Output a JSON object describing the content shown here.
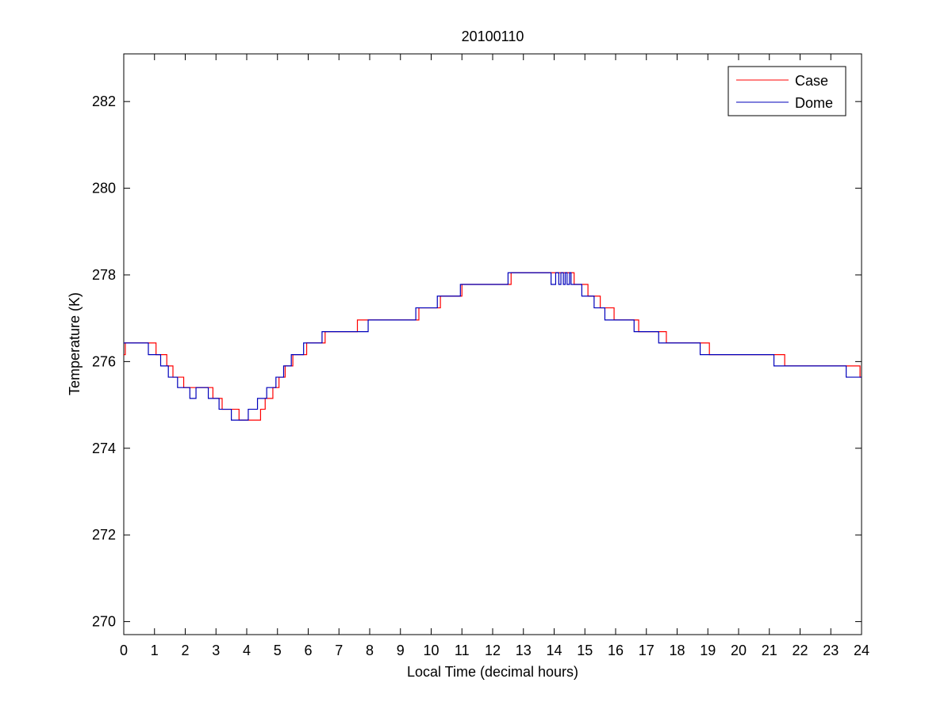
{
  "chart_data": {
    "type": "line",
    "title": "20100110",
    "xlabel": "Local Time (decimal hours)",
    "ylabel": "Temperature (K)",
    "xlim": [
      0,
      24
    ],
    "ylim": [
      269.7,
      283.1
    ],
    "xticks": [
      0,
      1,
      2,
      3,
      4,
      5,
      6,
      7,
      8,
      9,
      10,
      11,
      12,
      13,
      14,
      15,
      16,
      17,
      18,
      19,
      20,
      21,
      22,
      23,
      24
    ],
    "yticks": [
      270,
      272,
      274,
      276,
      278,
      280,
      282
    ],
    "grid": false,
    "legend_position": "top-right",
    "series": [
      {
        "name": "Case",
        "color": "#ff0000",
        "step_points": [
          [
            0.0,
            276.16
          ],
          [
            0.05,
            276.43
          ],
          [
            1.05,
            276.16
          ],
          [
            1.4,
            275.9
          ],
          [
            1.6,
            275.64
          ],
          [
            1.95,
            275.4
          ],
          [
            2.9,
            275.15
          ],
          [
            3.2,
            274.9
          ],
          [
            3.75,
            274.65
          ],
          [
            4.45,
            274.9
          ],
          [
            4.6,
            275.15
          ],
          [
            4.85,
            275.4
          ],
          [
            5.05,
            275.64
          ],
          [
            5.25,
            275.9
          ],
          [
            5.5,
            276.16
          ],
          [
            5.95,
            276.43
          ],
          [
            6.55,
            276.69
          ],
          [
            7.6,
            276.96
          ],
          [
            9.6,
            277.24
          ],
          [
            10.3,
            277.51
          ],
          [
            11.0,
            277.78
          ],
          [
            12.6,
            278.05
          ],
          [
            14.65,
            277.78
          ],
          [
            15.1,
            277.51
          ],
          [
            15.5,
            277.24
          ],
          [
            15.95,
            276.96
          ],
          [
            16.75,
            276.69
          ],
          [
            17.65,
            276.43
          ],
          [
            19.05,
            276.16
          ],
          [
            21.5,
            275.9
          ],
          [
            23.95,
            275.64
          ],
          [
            24.0,
            275.64
          ]
        ]
      },
      {
        "name": "Dome",
        "color": "#0000bb",
        "step_points": [
          [
            0.0,
            276.43
          ],
          [
            0.2,
            276.43
          ],
          [
            0.8,
            276.16
          ],
          [
            1.2,
            275.9
          ],
          [
            1.45,
            275.64
          ],
          [
            1.75,
            275.4
          ],
          [
            2.15,
            275.15
          ],
          [
            2.35,
            275.4
          ],
          [
            2.75,
            275.15
          ],
          [
            3.1,
            274.9
          ],
          [
            3.5,
            274.65
          ],
          [
            4.05,
            274.9
          ],
          [
            4.35,
            275.15
          ],
          [
            4.65,
            275.4
          ],
          [
            4.95,
            275.64
          ],
          [
            5.2,
            275.9
          ],
          [
            5.45,
            276.16
          ],
          [
            5.85,
            276.43
          ],
          [
            6.45,
            276.69
          ],
          [
            7.95,
            276.96
          ],
          [
            9.5,
            277.24
          ],
          [
            10.2,
            277.51
          ],
          [
            10.95,
            277.78
          ],
          [
            12.5,
            278.05
          ],
          [
            13.9,
            277.78
          ],
          [
            14.05,
            278.05
          ],
          [
            14.15,
            277.78
          ],
          [
            14.22,
            278.05
          ],
          [
            14.3,
            277.78
          ],
          [
            14.36,
            278.05
          ],
          [
            14.42,
            277.78
          ],
          [
            14.5,
            278.05
          ],
          [
            14.55,
            277.78
          ],
          [
            14.9,
            277.51
          ],
          [
            15.3,
            277.24
          ],
          [
            15.65,
            276.96
          ],
          [
            16.6,
            276.69
          ],
          [
            17.4,
            276.43
          ],
          [
            18.75,
            276.16
          ],
          [
            21.15,
            275.9
          ],
          [
            23.5,
            275.64
          ],
          [
            24.0,
            275.64
          ]
        ]
      }
    ]
  }
}
